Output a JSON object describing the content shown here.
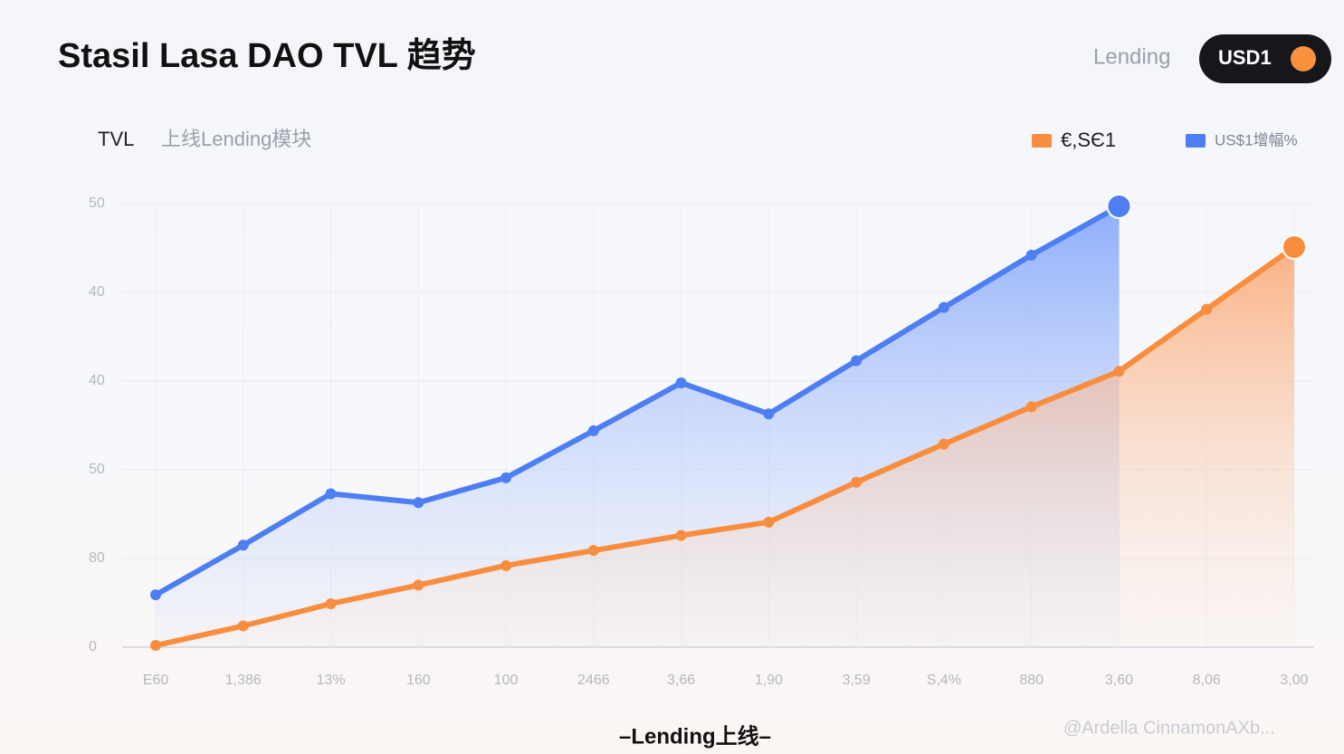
{
  "header": {
    "title": "Stasil Lasa DAO TVL 趋势",
    "tab": "Lending",
    "button": "USD1"
  },
  "footer": {
    "caption": "–Lending上线–",
    "watermark": "@Ardella CinnamonAXb..."
  },
  "chart_data": {
    "type": "area",
    "title": "TVL",
    "subtitle": "上线Lending模块",
    "categories": [
      "E60",
      "1,386",
      "13%",
      "160",
      "100",
      "2466",
      "3,66",
      "1,90",
      "3,59",
      "S,4%",
      "880",
      "3,60",
      "8,06",
      "3,00"
    ],
    "series": [
      {
        "name": "€,SЄ1",
        "color": "#f98d3e",
        "values": [
          0.2,
          2.4,
          4.9,
          7.0,
          9.2,
          10.9,
          12.6,
          14.1,
          18.6,
          22.9,
          27.1,
          31.1,
          38.1,
          45.1
        ]
      },
      {
        "name": "US$1增幅%",
        "color": "#4d7ef2",
        "values": [
          5.9,
          11.5,
          17.3,
          16.3,
          19.1,
          24.4,
          29.8,
          26.3,
          32.3,
          38.3,
          44.2,
          49.7,
          null,
          null
        ]
      }
    ],
    "ylim": [
      0,
      50
    ],
    "yticks": [
      0,
      {
        "value": 10,
        "label": "80"
      },
      {
        "value": 20,
        "label": "50"
      },
      {
        "value": 30,
        "label": "40"
      },
      40,
      50
    ],
    "grid": true
  }
}
